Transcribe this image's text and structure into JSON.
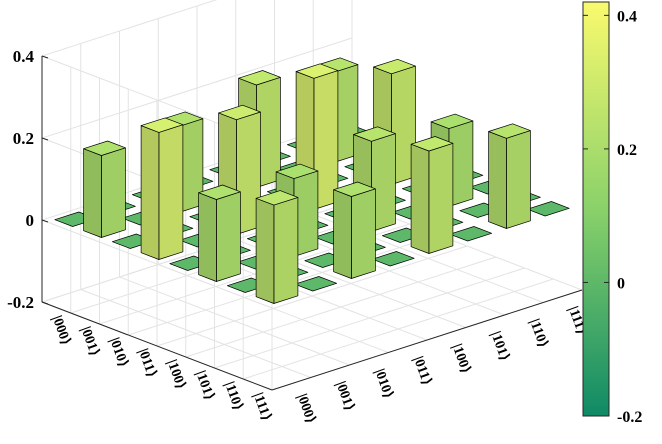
{
  "chart_data": {
    "type": "bar3d",
    "title": "",
    "xlabel": "",
    "ylabel": "",
    "zlabel": "",
    "x_tick_labels": [
      "|000⟩",
      "|001⟩",
      "|010⟩",
      "|011⟩",
      "|100⟩",
      "|101⟩",
      "|110⟩",
      "|111⟩"
    ],
    "y_tick_labels": [
      "|000⟩",
      "|001⟩",
      "|010⟩",
      "|011⟩",
      "|100⟩",
      "|101⟩",
      "|110⟩",
      "|111⟩"
    ],
    "z_ticks": [
      "0.4",
      "0.2",
      "0",
      "-0.2"
    ],
    "zlim": [
      -0.2,
      0.4
    ],
    "colorbar": {
      "ticks": [
        "0.4",
        "0.2",
        "0",
        "-0.2"
      ],
      "range": [
        -0.2,
        0.42
      ],
      "low_color": "#0f8a66",
      "mid_color": "#8ad16a",
      "high_color": "#fafa6e"
    },
    "grid": true,
    "values": [
      [
        0.24,
        0,
        0.2,
        0,
        0.25,
        0,
        0.22,
        0
      ],
      [
        0,
        0,
        0,
        0,
        0,
        0,
        0,
        0
      ],
      [
        0.2,
        0,
        0.19,
        0,
        0.22,
        0,
        0.19,
        0
      ],
      [
        0,
        0,
        0,
        0,
        0,
        0,
        0,
        0
      ],
      [
        0.31,
        0,
        0.28,
        0,
        0.32,
        0,
        0.27,
        0
      ],
      [
        0,
        0,
        0,
        0,
        0,
        0,
        0,
        0
      ],
      [
        0.2,
        0,
        0.21,
        0,
        0.25,
        0,
        0.22,
        0
      ],
      [
        0,
        0,
        0,
        0,
        0,
        0,
        0,
        0
      ]
    ]
  }
}
